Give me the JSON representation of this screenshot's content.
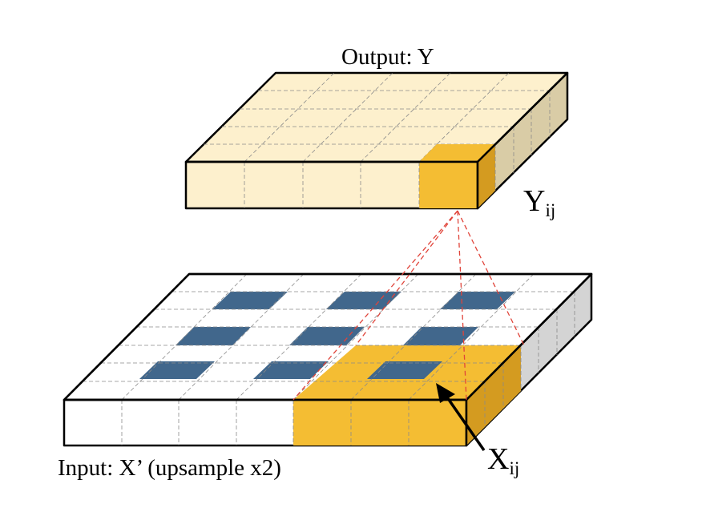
{
  "labels": {
    "output": "Output: Y",
    "input": "Input: X’ (upsample x2)",
    "y_main": "Y",
    "y_sub": "ij",
    "x_main": "X",
    "x_sub": "ij"
  },
  "colors": {
    "output_face": "#fdf0cd",
    "output_side": "#d9cca6",
    "input_face": "#ffffff",
    "input_side": "#d4d4d4",
    "highlight": "#f4bd33",
    "highlight_side": "#d49b20",
    "blue_cell": "#41678c",
    "guide_lines": "#e0443a"
  }
}
